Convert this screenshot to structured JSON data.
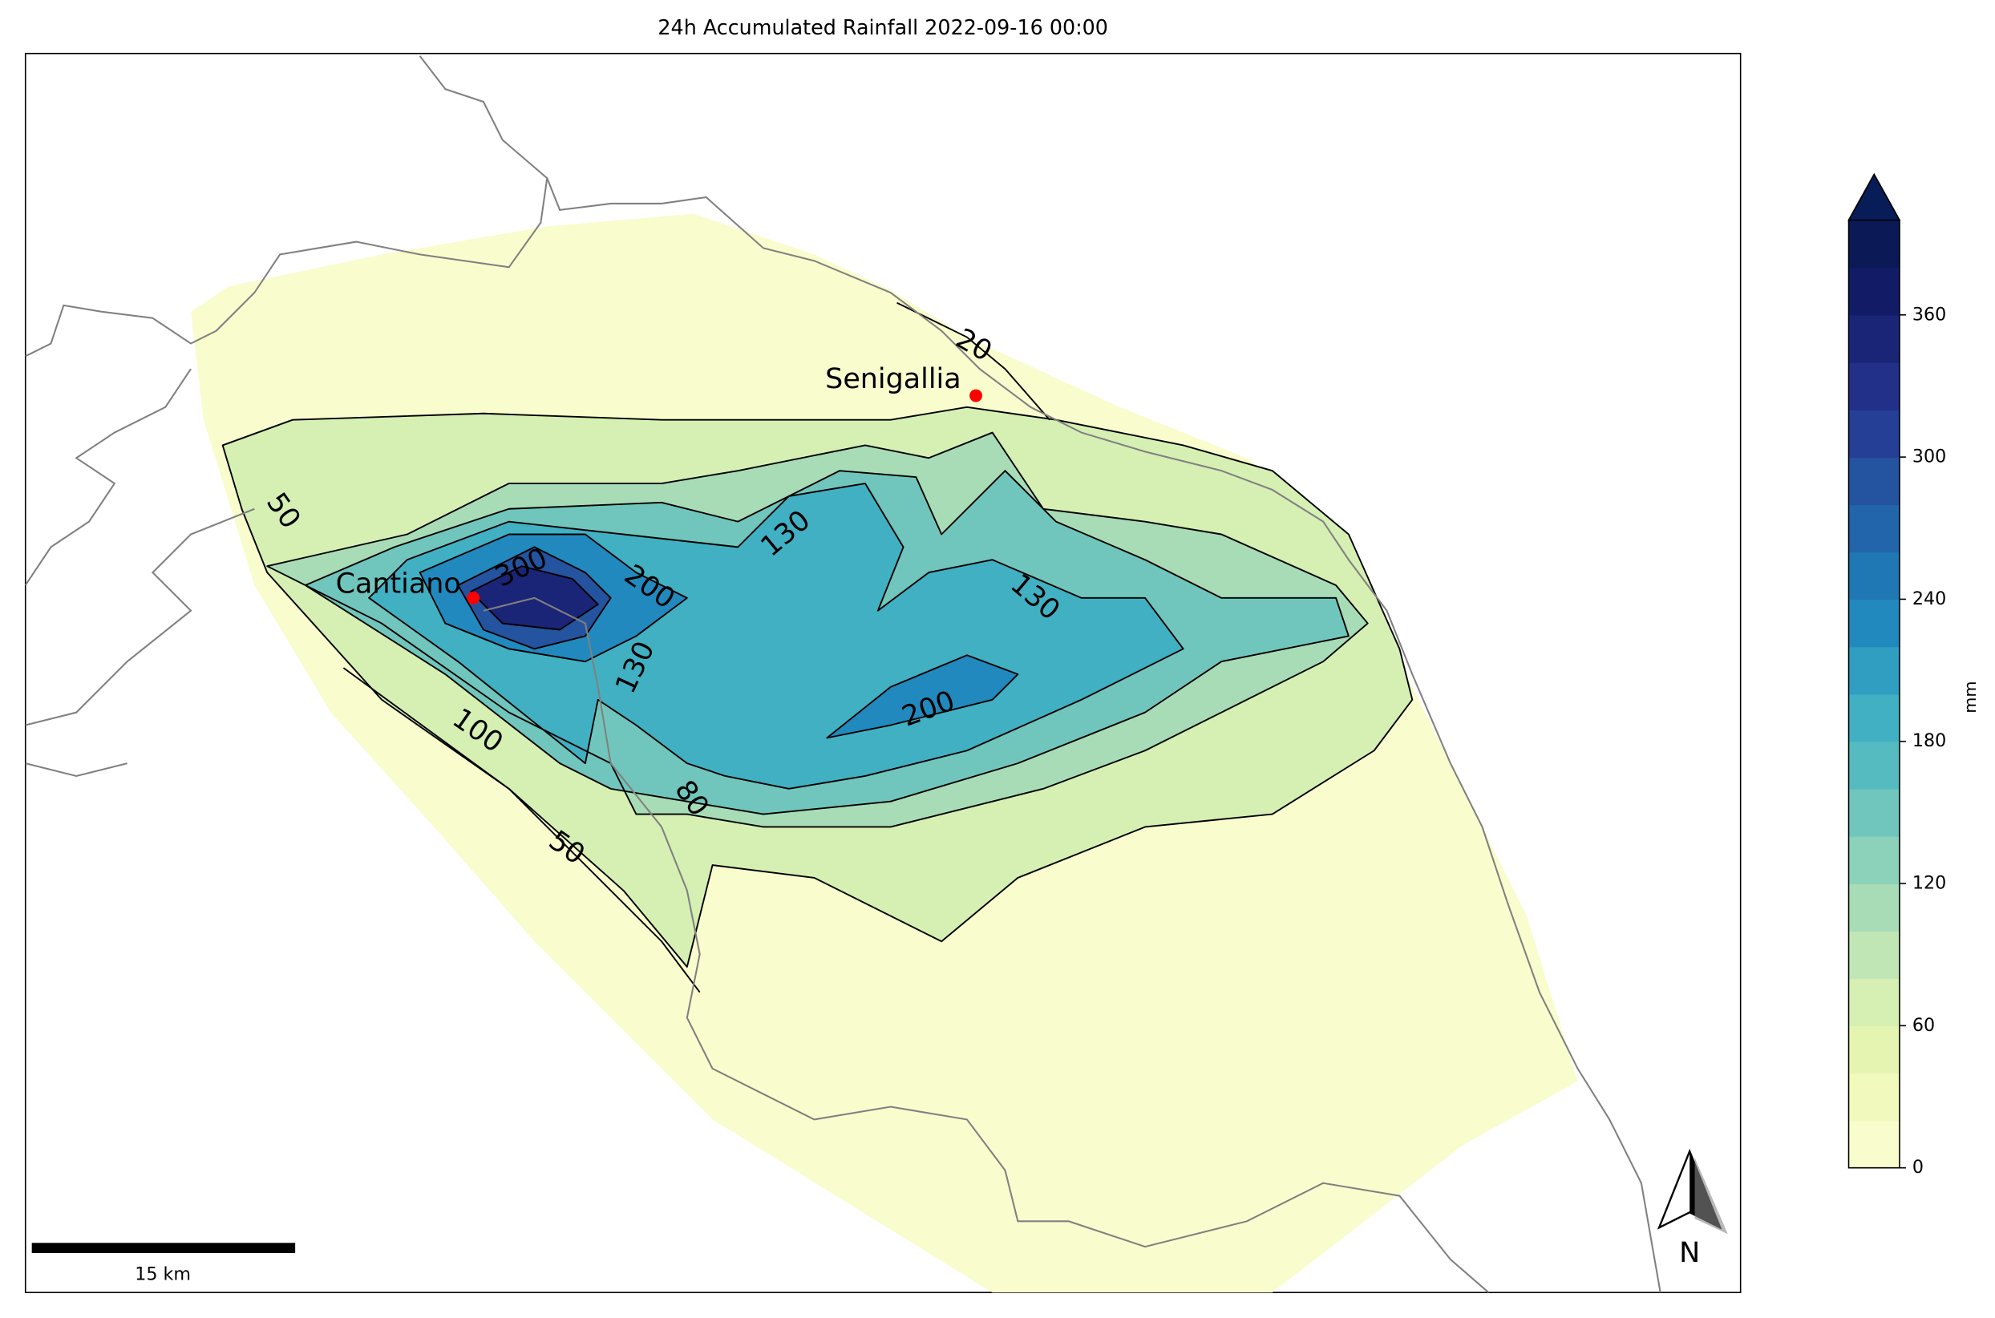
{
  "title": "24h Accumulated Rainfall 2022-09-16 00:00",
  "colorbar": {
    "label": "mm",
    "clim": [
      0,
      400
    ],
    "ticks": [
      0,
      60,
      120,
      180,
      240,
      300,
      360
    ]
  },
  "contour_labels": [
    20,
    50,
    100,
    50,
    80,
    130,
    130,
    130,
    200,
    200,
    300
  ],
  "places": [
    {
      "name": "Senigallia"
    },
    {
      "name": "Cantiano"
    }
  ],
  "scale_bar": {
    "label": "15 km"
  },
  "north_arrow": {
    "label": "N"
  }
}
